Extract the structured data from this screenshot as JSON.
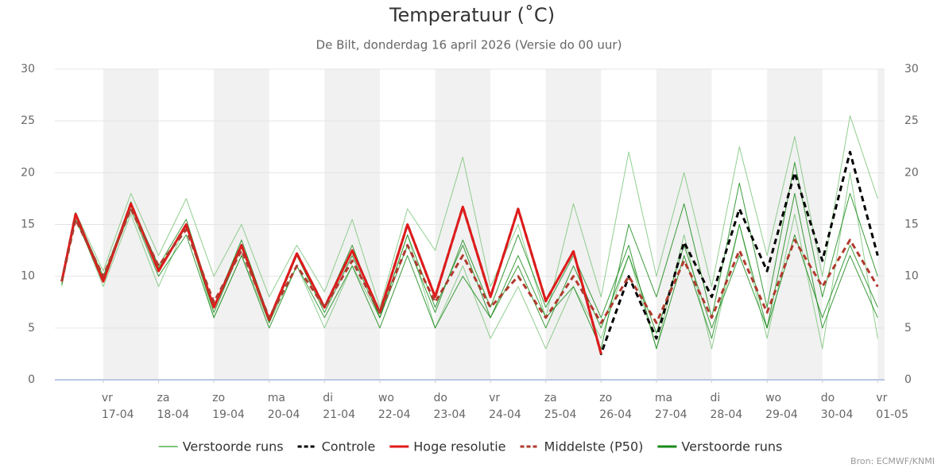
{
  "chart_data": {
    "type": "line",
    "title": "Temperatuur (˚C)",
    "subtitle": "De Bilt, donderdag 16 april 2026 (Versie do 00 uur)",
    "source": "Bron: ECMWF/KNMI",
    "x": [
      "2026-04-16T06",
      "2026-04-16T12",
      "2026-04-17T00",
      "2026-04-17T12",
      "2026-04-18T00",
      "2026-04-18T12",
      "2026-04-19T00",
      "2026-04-19T12",
      "2026-04-20T00",
      "2026-04-20T12",
      "2026-04-21T00",
      "2026-04-21T12",
      "2026-04-22T00",
      "2026-04-22T12",
      "2026-04-23T00",
      "2026-04-23T12",
      "2026-04-24T00",
      "2026-04-24T12",
      "2026-04-25T00",
      "2026-04-25T12",
      "2026-04-26T00",
      "2026-04-26T12",
      "2026-04-27T00",
      "2026-04-27T12",
      "2026-04-28T00",
      "2026-04-28T12",
      "2026-04-29T00",
      "2026-04-29T12",
      "2026-04-30T00",
      "2026-04-30T12",
      "2026-05-01T00"
    ],
    "xlim": [
      "2026-04-16T03",
      "2026-05-01T03"
    ],
    "xticks": [
      {
        "value": "2026-04-17T00",
        "label": [
          "vr",
          "17-04"
        ]
      },
      {
        "value": "2026-04-18T00",
        "label": [
          "za",
          "18-04"
        ]
      },
      {
        "value": "2026-04-19T00",
        "label": [
          "zo",
          "19-04"
        ]
      },
      {
        "value": "2026-04-20T00",
        "label": [
          "ma",
          "20-04"
        ]
      },
      {
        "value": "2026-04-21T00",
        "label": [
          "di",
          "21-04"
        ]
      },
      {
        "value": "2026-04-22T00",
        "label": [
          "wo",
          "22-04"
        ]
      },
      {
        "value": "2026-04-23T00",
        "label": [
          "do",
          "23-04"
        ]
      },
      {
        "value": "2026-04-24T00",
        "label": [
          "vr",
          "24-04"
        ]
      },
      {
        "value": "2026-04-25T00",
        "label": [
          "za",
          "25-04"
        ]
      },
      {
        "value": "2026-04-26T00",
        "label": [
          "zo",
          "26-04"
        ]
      },
      {
        "value": "2026-04-27T00",
        "label": [
          "ma",
          "27-04"
        ]
      },
      {
        "value": "2026-04-28T00",
        "label": [
          "di",
          "28-04"
        ]
      },
      {
        "value": "2026-04-29T00",
        "label": [
          "wo",
          "29-04"
        ]
      },
      {
        "value": "2026-04-30T00",
        "label": [
          "do",
          "30-04"
        ]
      },
      {
        "value": "2026-05-01T00",
        "label": [
          "vr",
          "01-05"
        ]
      }
    ],
    "ylim": [
      0,
      30
    ],
    "yticks": [
      0,
      5,
      10,
      15,
      20,
      25,
      30
    ],
    "y2lim": [
      0,
      30
    ],
    "y2ticks": [
      0,
      5,
      10,
      15,
      20,
      25,
      30
    ],
    "grid": true,
    "series": [
      {
        "name": "Verstoorde runs",
        "color": "#7cc67c",
        "runs": [
          [
            9,
            16.2,
            10.5,
            18,
            12,
            17.5,
            10,
            15,
            8,
            13,
            8.5,
            15.5,
            7,
            16.5,
            12.5,
            21.5,
            9,
            15,
            6,
            17,
            8,
            22,
            10,
            20,
            9,
            22.5,
            12,
            23.5,
            10,
            25.5,
            17.5
          ],
          [
            9.3,
            15.8,
            9,
            16,
            9,
            15,
            6,
            12,
            5.5,
            11,
            5,
            11,
            6,
            14,
            5,
            11,
            4,
            9,
            3,
            9,
            4,
            12,
            3,
            14,
            3,
            15,
            4,
            16,
            3,
            20,
            4
          ]
        ]
      },
      {
        "name": "Controle",
        "color": "#000000",
        "dash": true,
        "values": [
          9.5,
          16,
          9.5,
          17,
          10.5,
          15,
          7,
          13,
          5.8,
          12.2,
          7,
          12.5,
          6.5,
          15,
          8,
          16.7,
          8,
          16.5,
          7.6,
          12.4,
          2.5,
          10,
          4,
          13.3,
          8,
          16.5,
          10.5,
          20,
          11.5,
          22,
          12
        ]
      },
      {
        "name": "Hoge resolutie",
        "color": "#e01b1b",
        "values": [
          9.5,
          16,
          9.5,
          17,
          10.5,
          15,
          7,
          13,
          5.8,
          12.2,
          7,
          12.5,
          6.5,
          15,
          8,
          16.7,
          8,
          16.5,
          7.6,
          12.4,
          2.5,
          null,
          null,
          null,
          null,
          null,
          null,
          null,
          null,
          null,
          null
        ]
      },
      {
        "name": "Middelste (P50)",
        "color": "#b03a2e",
        "dash": true,
        "values": [
          9.5,
          15.5,
          10,
          16.5,
          11,
          14.5,
          7.5,
          12.5,
          6,
          11,
          7,
          11.5,
          6.5,
          13,
          7.5,
          12,
          7,
          10,
          6,
          10,
          5.5,
          10,
          5.5,
          11.5,
          6,
          12.5,
          6.5,
          13.5,
          9,
          13.5,
          9
        ]
      },
      {
        "name": "Verstoorde runs",
        "color": "#1a8a1a",
        "runs": [
          [
            9.5,
            16,
            10,
            17,
            11,
            15.5,
            7,
            13.5,
            6,
            12,
            7,
            13,
            6,
            14,
            7,
            13,
            6,
            11,
            5,
            11,
            5,
            12,
            4.5,
            13,
            5,
            12,
            5,
            14,
            6,
            13,
            7
          ],
          [
            9.2,
            15.5,
            9.5,
            16.5,
            10,
            14,
            6,
            12,
            5,
            11,
            6,
            11,
            5,
            12,
            5,
            10,
            6,
            12,
            6,
            9,
            3,
            15,
            8,
            17,
            6,
            19,
            7,
            21,
            8,
            18,
            10
          ],
          [
            9.6,
            15.9,
            9.8,
            17.2,
            10.8,
            14.8,
            6.5,
            12.8,
            5.5,
            12,
            6.5,
            12,
            6,
            13,
            6.5,
            13.5,
            7,
            14,
            7,
            12,
            6,
            13,
            3,
            12,
            4,
            15,
            5,
            18,
            5,
            12,
            6
          ]
        ]
      }
    ]
  }
}
